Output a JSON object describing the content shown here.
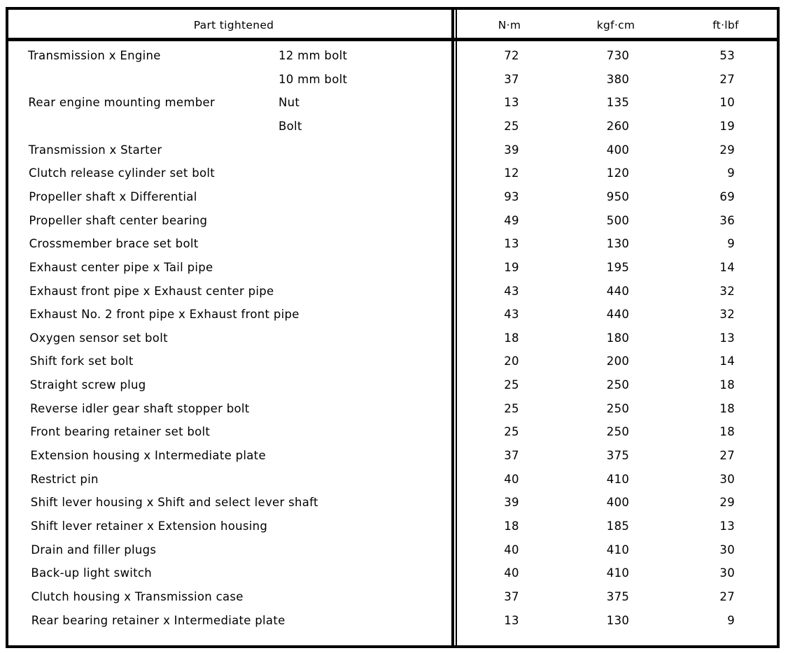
{
  "header": {
    "part": "Part tightened",
    "nm": "N·m",
    "kgfcm": "kgf·cm",
    "ftlbf": "ft·lbf"
  },
  "rows": [
    {
      "part": "Transmission x Engine",
      "detail": "12 mm bolt",
      "nm": 72,
      "kgfcm": 730,
      "ftlbf": 53
    },
    {
      "detail": "10 mm bolt",
      "nm": 37,
      "kgfcm": 380,
      "ftlbf": 27
    },
    {
      "part": "Rear engine mounting member",
      "detail": "Nut",
      "nm": 13,
      "kgfcm": 135,
      "ftlbf": 10
    },
    {
      "detail": "Bolt",
      "nm": 25,
      "kgfcm": 260,
      "ftlbf": 19
    },
    {
      "part": "Transmission x Starter",
      "nm": 39,
      "kgfcm": 400,
      "ftlbf": 29
    },
    {
      "part": "Clutch release cylinder set bolt",
      "nm": 12,
      "kgfcm": 120,
      "ftlbf": 9
    },
    {
      "part": "Propeller shaft x Differential",
      "nm": 93,
      "kgfcm": 950,
      "ftlbf": 69
    },
    {
      "part": "Propeller shaft center bearing",
      "nm": 49,
      "kgfcm": 500,
      "ftlbf": 36
    },
    {
      "part": "Crossmember brace set bolt",
      "nm": 13,
      "kgfcm": 130,
      "ftlbf": 9
    },
    {
      "part": "Exhaust center pipe x Tail pipe",
      "nm": 19,
      "kgfcm": 195,
      "ftlbf": 14
    },
    {
      "part": "Exhaust front pipe x Exhaust center pipe",
      "nm": 43,
      "kgfcm": 440,
      "ftlbf": 32
    },
    {
      "part": "Exhaust No. 2 front pipe x Exhaust front pipe",
      "nm": 43,
      "kgfcm": 440,
      "ftlbf": 32
    },
    {
      "part": "Oxygen sensor set bolt",
      "nm": 18,
      "kgfcm": 180,
      "ftlbf": 13
    },
    {
      "part": "Shift fork set bolt",
      "nm": 20,
      "kgfcm": 200,
      "ftlbf": 14
    },
    {
      "part": "Straight screw plug",
      "nm": 25,
      "kgfcm": 250,
      "ftlbf": 18
    },
    {
      "part": "Reverse idler gear shaft stopper bolt",
      "nm": 25,
      "kgfcm": 250,
      "ftlbf": 18
    },
    {
      "part": "Front bearing retainer set bolt",
      "nm": 25,
      "kgfcm": 250,
      "ftlbf": 18
    },
    {
      "part": "Extension housing x Intermediate plate",
      "nm": 37,
      "kgfcm": 375,
      "ftlbf": 27
    },
    {
      "part": "Restrict pin",
      "nm": 40,
      "kgfcm": 410,
      "ftlbf": 30
    },
    {
      "part": "Shift lever housing x Shift and select lever shaft",
      "nm": 39,
      "kgfcm": 400,
      "ftlbf": 29
    },
    {
      "part": "Shift lever retainer x Extension housing",
      "nm": 18,
      "kgfcm": 185,
      "ftlbf": 13
    },
    {
      "part": "Drain and filler plugs",
      "nm": 40,
      "kgfcm": 410,
      "ftlbf": 30
    },
    {
      "part": "Back-up light switch",
      "nm": 40,
      "kgfcm": 410,
      "ftlbf": 30
    },
    {
      "part": "Clutch housing x Transmission case",
      "nm": 37,
      "kgfcm": 375,
      "ftlbf": 27
    },
    {
      "part": "Rear bearing retainer x Intermediate plate",
      "nm": 13,
      "kgfcm": 130,
      "ftlbf": 9
    }
  ]
}
